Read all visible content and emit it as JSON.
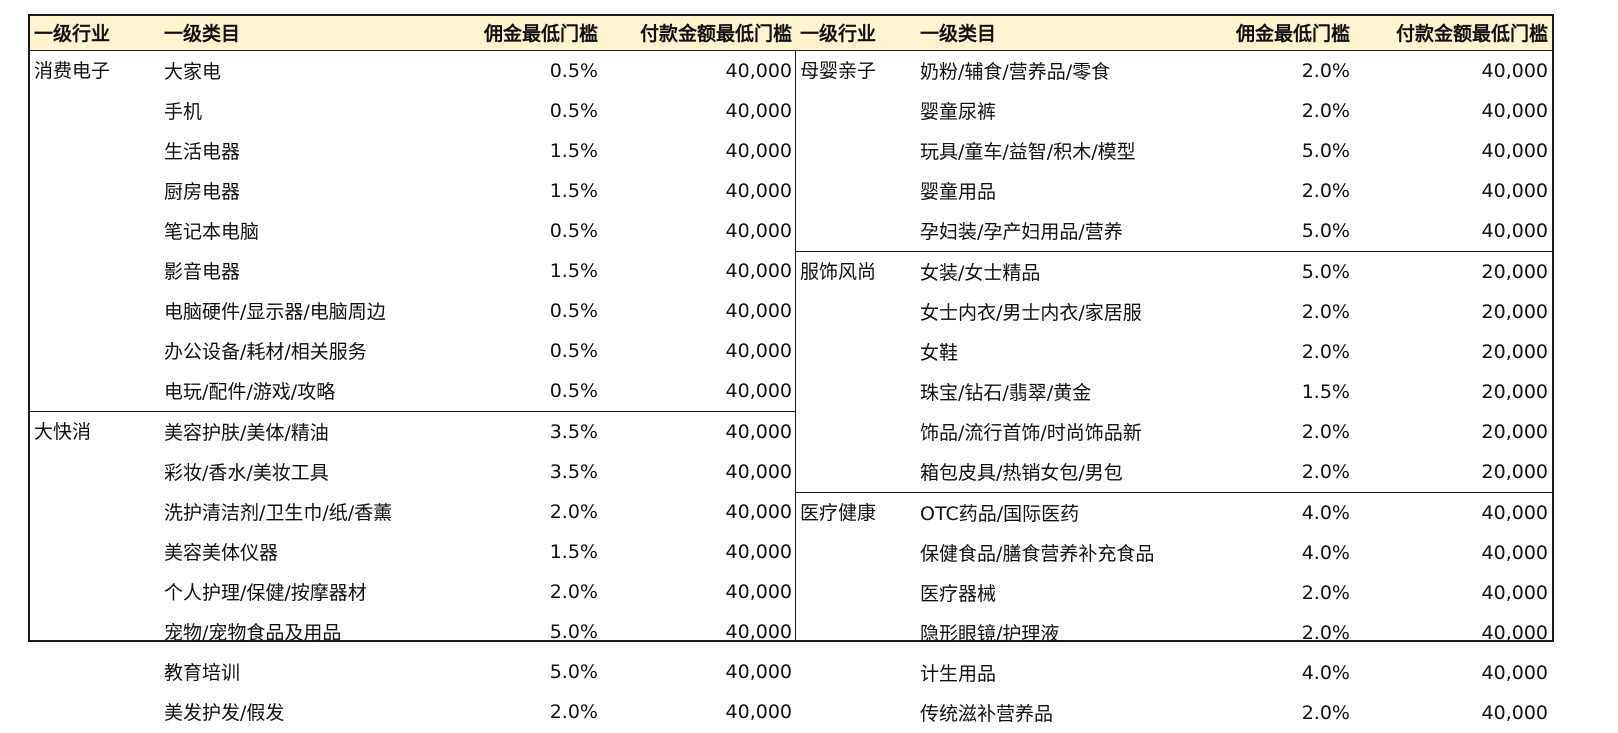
{
  "headers": {
    "industry": "一级行业",
    "category": "一级类目",
    "commission": "佣金最低门槛",
    "payment": "付款金额最低门槛"
  },
  "left": {
    "groups": [
      {
        "industry": "消费电子",
        "rows": [
          {
            "category": "大家电",
            "commission": "0.5%",
            "payment": "40,000"
          },
          {
            "category": "手机",
            "commission": "0.5%",
            "payment": "40,000"
          },
          {
            "category": "生活电器",
            "commission": "1.5%",
            "payment": "40,000"
          },
          {
            "category": "厨房电器",
            "commission": "1.5%",
            "payment": "40,000"
          },
          {
            "category": "笔记本电脑",
            "commission": "0.5%",
            "payment": "40,000"
          },
          {
            "category": "影音电器",
            "commission": "1.5%",
            "payment": "40,000"
          },
          {
            "category": "电脑硬件/显示器/电脑周边",
            "commission": "0.5%",
            "payment": "40,000"
          },
          {
            "category": "办公设备/耗材/相关服务",
            "commission": "0.5%",
            "payment": "40,000"
          },
          {
            "category": "电玩/配件/游戏/攻略",
            "commission": "0.5%",
            "payment": "40,000"
          }
        ]
      },
      {
        "industry": "大快消",
        "rows": [
          {
            "category": "美容护肤/美体/精油",
            "commission": "3.5%",
            "payment": "40,000"
          },
          {
            "category": "彩妆/香水/美妆工具",
            "commission": "3.5%",
            "payment": "40,000"
          },
          {
            "category": "洗护清洁剂/卫生巾/纸/香薰",
            "commission": "2.0%",
            "payment": "40,000"
          },
          {
            "category": "美容美体仪器",
            "commission": "1.5%",
            "payment": "40,000"
          },
          {
            "category": "个人护理/保健/按摩器材",
            "commission": "2.0%",
            "payment": "40,000"
          },
          {
            "category": "宠物/宠物食品及用品",
            "commission": "5.0%",
            "payment": "40,000"
          },
          {
            "category": "教育培训",
            "commission": "5.0%",
            "payment": "40,000"
          },
          {
            "category": "美发护发/假发",
            "commission": "2.0%",
            "payment": "40,000"
          }
        ]
      }
    ]
  },
  "right": {
    "groups": [
      {
        "industry": "母婴亲子",
        "rows": [
          {
            "category": "奶粉/辅食/营养品/零食",
            "commission": "2.0%",
            "payment": "40,000"
          },
          {
            "category": "婴童尿裤",
            "commission": "2.0%",
            "payment": "40,000"
          },
          {
            "category": "玩具/童车/益智/积木/模型",
            "commission": "5.0%",
            "payment": "40,000"
          },
          {
            "category": "婴童用品",
            "commission": "2.0%",
            "payment": "40,000"
          },
          {
            "category": "孕妇装/孕产妇用品/营养",
            "commission": "5.0%",
            "payment": "40,000"
          }
        ]
      },
      {
        "industry": "服饰风尚",
        "rows": [
          {
            "category": "女装/女士精品",
            "commission": "5.0%",
            "payment": "20,000"
          },
          {
            "category": "女士内衣/男士内衣/家居服",
            "commission": "2.0%",
            "payment": "20,000"
          },
          {
            "category": "女鞋",
            "commission": "2.0%",
            "payment": "20,000"
          },
          {
            "category": "珠宝/钻石/翡翠/黄金",
            "commission": "1.5%",
            "payment": "20,000"
          },
          {
            "category": "饰品/流行首饰/时尚饰品新",
            "commission": "2.0%",
            "payment": "20,000"
          },
          {
            "category": "箱包皮具/热销女包/男包",
            "commission": "2.0%",
            "payment": "20,000"
          }
        ]
      },
      {
        "industry": "医疗健康",
        "rows": [
          {
            "category": "OTC药品/国际医药",
            "commission": "4.0%",
            "payment": "40,000"
          },
          {
            "category": "保健食品/膳食营养补充食品",
            "commission": "4.0%",
            "payment": "40,000"
          },
          {
            "category": "医疗器械",
            "commission": "2.0%",
            "payment": "40,000"
          },
          {
            "category": "隐形眼镜/护理液",
            "commission": "2.0%",
            "payment": "40,000"
          },
          {
            "category": "计生用品",
            "commission": "4.0%",
            "payment": "40,000"
          },
          {
            "category": "传统滋补营养品",
            "commission": "2.0%",
            "payment": "40,000"
          }
        ]
      }
    ]
  },
  "colors": {
    "header_bg": "#fff4cf",
    "border": "#1a1a1a"
  }
}
